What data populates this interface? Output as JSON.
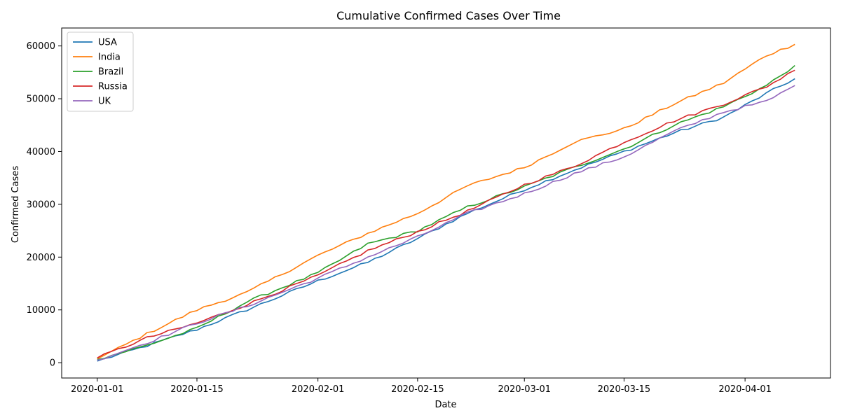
{
  "chart_data": {
    "type": "line",
    "title": "Cumulative Confirmed Cases Over Time",
    "xlabel": "Date",
    "ylabel": "Confirmed Cases",
    "x_range": [
      "2020-01-01",
      "2020-04-08"
    ],
    "xlim": [
      "2019-12-27",
      "2020-04-13"
    ],
    "ylim": [
      -2900,
      63400
    ],
    "x_ticks": [
      "2020-01-01",
      "2020-01-15",
      "2020-02-01",
      "2020-02-15",
      "2020-03-01",
      "2020-03-15",
      "2020-04-01"
    ],
    "y_ticks": [
      0,
      10000,
      20000,
      30000,
      40000,
      50000,
      60000
    ],
    "grid": false,
    "legend_position": "top-left",
    "series": [
      {
        "name": "USA",
        "color": "#1f77b4",
        "points": [
          [
            "2020-01-01",
            300
          ],
          [
            "2020-01-08",
            3200
          ],
          [
            "2020-01-15",
            6300
          ],
          [
            "2020-01-22",
            10000
          ],
          [
            "2020-02-01",
            15500
          ],
          [
            "2020-02-08",
            19000
          ],
          [
            "2020-02-15",
            23500
          ],
          [
            "2020-02-22",
            28300
          ],
          [
            "2020-03-01",
            32800
          ],
          [
            "2020-03-08",
            36500
          ],
          [
            "2020-03-15",
            40000
          ],
          [
            "2020-03-22",
            43500
          ],
          [
            "2020-03-29",
            46500
          ],
          [
            "2020-04-04",
            51000
          ],
          [
            "2020-04-08",
            53800
          ]
        ]
      },
      {
        "name": "India",
        "color": "#ff7f0e",
        "points": [
          [
            "2020-01-01",
            700
          ],
          [
            "2020-01-08",
            5500
          ],
          [
            "2020-01-15",
            10000
          ],
          [
            "2020-01-22",
            13300
          ],
          [
            "2020-02-01",
            20300
          ],
          [
            "2020-02-08",
            24500
          ],
          [
            "2020-02-15",
            28300
          ],
          [
            "2020-02-22",
            33500
          ],
          [
            "2020-03-01",
            37000
          ],
          [
            "2020-03-08",
            41800
          ],
          [
            "2020-03-15",
            44300
          ],
          [
            "2020-03-22",
            49000
          ],
          [
            "2020-03-29",
            53000
          ],
          [
            "2020-04-04",
            58200
          ],
          [
            "2020-04-08",
            60300
          ]
        ]
      },
      {
        "name": "Brazil",
        "color": "#2ca02c",
        "points": [
          [
            "2020-01-01",
            600
          ],
          [
            "2020-01-08",
            3300
          ],
          [
            "2020-01-15",
            6500
          ],
          [
            "2020-01-22",
            11500
          ],
          [
            "2020-02-01",
            17000
          ],
          [
            "2020-02-08",
            22500
          ],
          [
            "2020-02-15",
            25000
          ],
          [
            "2020-02-22",
            29500
          ],
          [
            "2020-03-01",
            33300
          ],
          [
            "2020-03-08",
            37000
          ],
          [
            "2020-03-15",
            40500
          ],
          [
            "2020-03-22",
            45000
          ],
          [
            "2020-03-29",
            48500
          ],
          [
            "2020-04-04",
            52500
          ],
          [
            "2020-04-08",
            56300
          ]
        ]
      },
      {
        "name": "Russia",
        "color": "#d62728",
        "points": [
          [
            "2020-01-01",
            900
          ],
          [
            "2020-01-08",
            4700
          ],
          [
            "2020-01-15",
            7500
          ],
          [
            "2020-01-22",
            11000
          ],
          [
            "2020-02-01",
            16500
          ],
          [
            "2020-02-08",
            21200
          ],
          [
            "2020-02-15",
            24800
          ],
          [
            "2020-02-22",
            28700
          ],
          [
            "2020-03-01",
            33700
          ],
          [
            "2020-03-08",
            37200
          ],
          [
            "2020-03-15",
            41800
          ],
          [
            "2020-03-22",
            45800
          ],
          [
            "2020-03-29",
            49000
          ],
          [
            "2020-04-04",
            52300
          ],
          [
            "2020-04-08",
            55400
          ]
        ]
      },
      {
        "name": "UK",
        "color": "#9467bd",
        "points": [
          [
            "2020-01-01",
            500
          ],
          [
            "2020-01-08",
            3800
          ],
          [
            "2020-01-15",
            7500
          ],
          [
            "2020-01-22",
            10700
          ],
          [
            "2020-02-01",
            16000
          ],
          [
            "2020-02-08",
            20000
          ],
          [
            "2020-02-15",
            23800
          ],
          [
            "2020-02-22",
            28300
          ],
          [
            "2020-03-01",
            32000
          ],
          [
            "2020-03-08",
            35800
          ],
          [
            "2020-03-15",
            39000
          ],
          [
            "2020-03-22",
            43800
          ],
          [
            "2020-03-29",
            47500
          ],
          [
            "2020-04-04",
            49500
          ],
          [
            "2020-04-08",
            52500
          ]
        ]
      }
    ]
  }
}
